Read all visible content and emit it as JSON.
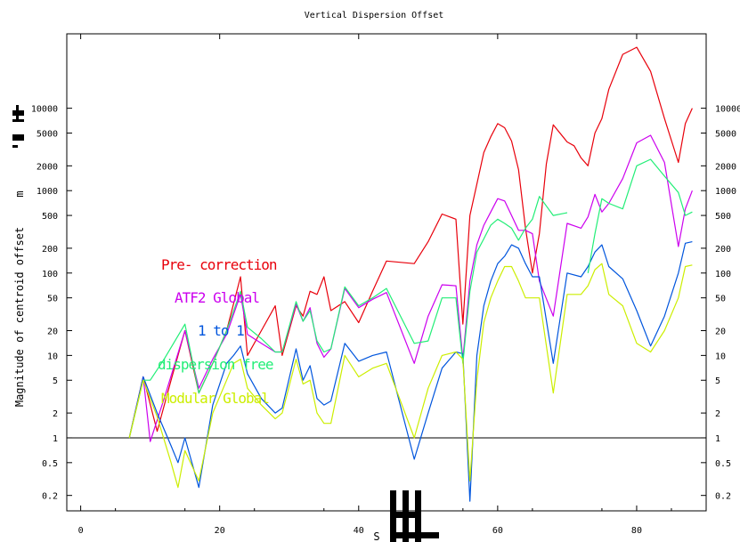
{
  "chart_data": {
    "type": "line",
    "title": "Vertical  Dispersion  Offset",
    "xlabel": "S",
    "ylabel": "Magnitude of centroid offset",
    "xlim": [
      -2,
      90
    ],
    "ylim": [
      0.13,
      80000
    ],
    "y_scale": "log",
    "grid": false,
    "legend_position": "inside-left",
    "x_ticks": [
      0,
      20,
      40,
      60,
      80
    ],
    "x_tick_labels": [
      "0",
      "20",
      "40",
      "60",
      "80"
    ],
    "y_ticks": [
      0.2,
      0.5,
      1,
      2,
      5,
      10,
      20,
      50,
      100,
      200,
      500,
      1000,
      2000,
      5000,
      10000
    ],
    "y_tick_labels": [
      "0.2",
      "0.5",
      "1",
      "2",
      "5",
      "10",
      "20",
      "50",
      "100",
      "200",
      "500",
      "1000",
      "2000",
      "5000",
      "10000"
    ],
    "reference_line": {
      "y": 1,
      "color": "#000000"
    },
    "series": [
      {
        "name": "Pre-correction",
        "color": "#e8000b",
        "x": [
          7,
          9,
          11,
          13,
          15,
          17,
          19,
          21,
          23,
          24,
          26,
          28,
          29,
          31,
          32,
          33,
          34,
          35,
          36,
          38,
          40,
          42,
          44,
          48,
          50,
          52,
          54,
          55,
          56,
          57,
          58,
          59,
          60,
          61,
          62,
          63,
          64,
          65,
          66,
          67,
          68,
          70,
          71,
          72,
          73,
          74,
          75,
          76,
          78,
          80,
          82,
          84,
          86,
          87,
          88
        ],
        "values": [
          1,
          5.5,
          1.2,
          5,
          20,
          3.5,
          8,
          20,
          90,
          10,
          20,
          40,
          10,
          40,
          30,
          60,
          55,
          90,
          35,
          45,
          25,
          60,
          140,
          130,
          240,
          520,
          450,
          24,
          500,
          1200,
          2900,
          4500,
          6500,
          5800,
          4000,
          1800,
          350,
          100,
          300,
          2100,
          6300,
          3900,
          3500,
          2500,
          2000,
          5000,
          7500,
          17000,
          45000,
          55000,
          28000,
          7500,
          2200,
          6500,
          10000
        ]
      },
      {
        "name": "ATF2 Global",
        "color": "#cc00ee",
        "x": [
          7,
          9,
          10,
          12,
          15,
          17,
          19,
          21,
          23,
          24,
          26,
          28,
          29,
          31,
          32,
          33,
          34,
          35,
          36,
          38,
          40,
          42,
          44,
          48,
          50,
          52,
          54,
          55,
          56,
          57,
          58,
          59,
          60,
          61,
          62,
          63,
          64,
          65,
          66,
          68,
          70,
          72,
          73,
          74,
          75,
          76,
          78,
          80,
          82,
          84,
          86,
          87,
          88
        ],
        "values": [
          1,
          5.5,
          0.9,
          3,
          20,
          4,
          9,
          18,
          55,
          18,
          14,
          11,
          11,
          42,
          26,
          38,
          14,
          9.5,
          12,
          65,
          38,
          48,
          58,
          8,
          30,
          72,
          70,
          9,
          80,
          220,
          380,
          550,
          800,
          750,
          500,
          330,
          330,
          300,
          80,
          30,
          400,
          350,
          480,
          900,
          550,
          700,
          1400,
          3800,
          4700,
          2200,
          210,
          600,
          1000
        ]
      },
      {
        "name": "1 to 1",
        "color": "#0055dd",
        "x": [
          7,
          9,
          11,
          13,
          14,
          15,
          17,
          19,
          21,
          22,
          23,
          24,
          26,
          28,
          29,
          31,
          32,
          33,
          34,
          35,
          36,
          38,
          40,
          42,
          44,
          48,
          50,
          52,
          54,
          55,
          56,
          57,
          58,
          59,
          60,
          61,
          62,
          63,
          64,
          65,
          66,
          68,
          70,
          72,
          73,
          74,
          75,
          76,
          78,
          80,
          82,
          84,
          86,
          87,
          88
        ],
        "values": [
          1,
          5.5,
          2,
          0.8,
          0.5,
          1,
          0.25,
          2.5,
          8,
          10,
          13,
          6,
          3,
          2,
          2.3,
          12,
          5,
          7.5,
          3,
          2.5,
          2.8,
          14,
          8.5,
          10,
          11,
          0.55,
          2,
          7,
          11,
          10.5,
          0.17,
          10,
          40,
          80,
          130,
          160,
          220,
          200,
          130,
          90,
          90,
          8,
          100,
          90,
          120,
          180,
          220,
          120,
          85,
          35,
          13,
          30,
          100,
          230,
          240
        ]
      },
      {
        "name": "dispersion free",
        "color": "#22ee77",
        "x": [
          7,
          9,
          10,
          12,
          15,
          17,
          19,
          21,
          23,
          24,
          26,
          28,
          29,
          31,
          32,
          33,
          34,
          35,
          36,
          38,
          40,
          42,
          44,
          48,
          50,
          52,
          54,
          55,
          56,
          57,
          58,
          59,
          60,
          61,
          62,
          63,
          64,
          65,
          66,
          68,
          70,
          72,
          73,
          74,
          75,
          76,
          78,
          80,
          82,
          84,
          86,
          87,
          88
        ],
        "values": [
          1,
          5,
          5,
          9,
          24,
          3.5,
          8,
          20,
          60,
          22,
          16,
          11,
          11,
          45,
          26,
          35,
          15,
          11,
          12,
          68,
          40,
          50,
          65,
          14,
          15,
          50,
          50,
          8,
          60,
          180,
          260,
          380,
          450,
          400,
          350,
          250,
          350,
          450,
          850,
          500,
          540,
          null,
          100,
          300,
          800,
          700,
          600,
          2000,
          2400,
          1500,
          950,
          500,
          550
        ]
      },
      {
        "name": "Modular Global",
        "color": "#ccee00",
        "x": [
          7,
          9,
          11,
          13,
          14,
          15,
          17,
          19,
          21,
          22,
          23,
          24,
          26,
          28,
          29,
          31,
          32,
          33,
          34,
          35,
          36,
          38,
          40,
          42,
          44,
          48,
          50,
          52,
          54,
          55,
          56,
          57,
          58,
          59,
          60,
          61,
          62,
          63,
          64,
          65,
          66,
          68,
          70,
          72,
          73,
          74,
          75,
          76,
          78,
          80,
          82,
          84,
          86,
          87,
          88
        ],
        "values": [
          1,
          5,
          1.8,
          0.5,
          0.25,
          0.7,
          0.3,
          2,
          5,
          8,
          9,
          4,
          2.5,
          1.7,
          2,
          9,
          4.5,
          5,
          2,
          1.5,
          1.5,
          10,
          5.5,
          7,
          8,
          1,
          4,
          10,
          11,
          9,
          0.3,
          5,
          25,
          50,
          80,
          120,
          120,
          80,
          50,
          50,
          50,
          3.5,
          55,
          55,
          70,
          110,
          130,
          55,
          40,
          14,
          11,
          20,
          50,
          120,
          125
        ]
      }
    ]
  },
  "legend": {
    "pre_correction": "Pre- correction",
    "atf2_global": "ATF2 Global",
    "one_to_one": "1 to 1",
    "dispersion_free": "dispersion free",
    "modular_global": "Modular Global"
  },
  "ylabel_unit_glyph": "m"
}
